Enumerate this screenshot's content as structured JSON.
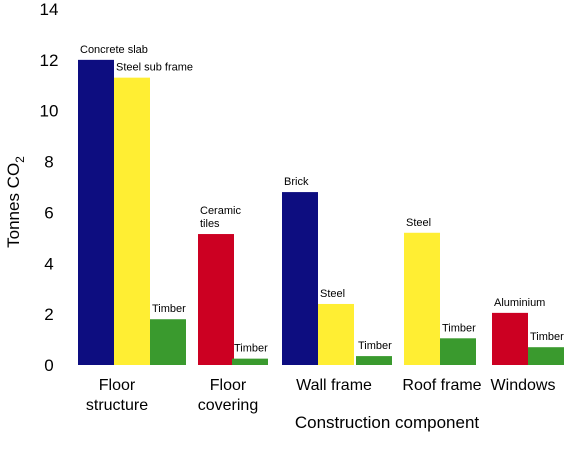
{
  "chart_data": {
    "type": "bar",
    "title": "",
    "xlabel": "Construction component",
    "ylabel_main": "Tonnes CO",
    "ylabel_sub": "2",
    "ylim": [
      0,
      14
    ],
    "y_ticks": [
      0,
      2,
      4,
      6,
      8,
      10,
      12,
      14
    ],
    "grid": false,
    "legend": "none",
    "colors": {
      "navy": "#0d0d80",
      "yellow": "#ffee33",
      "green": "#3a9a2e",
      "red": "#cc0022"
    },
    "categories": [
      {
        "label_lines": [
          "Floor",
          "structure"
        ]
      },
      {
        "label_lines": [
          "Floor",
          "covering"
        ]
      },
      {
        "label_lines": [
          "Wall frame"
        ]
      },
      {
        "label_lines": [
          "Roof frame"
        ]
      },
      {
        "label_lines": [
          "Windows"
        ]
      }
    ],
    "bars": [
      {
        "category": 0,
        "label_lines": [
          "Concrete slab"
        ],
        "value": 12.0,
        "color": "navy"
      },
      {
        "category": 0,
        "label_lines": [
          "Steel sub frame"
        ],
        "value": 11.3,
        "color": "yellow"
      },
      {
        "category": 0,
        "label_lines": [
          "Timber"
        ],
        "value": 1.8,
        "color": "green"
      },
      {
        "category": 1,
        "label_lines": [
          "Ceramic",
          "tiles"
        ],
        "value": 5.15,
        "color": "red"
      },
      {
        "category": 1,
        "label_lines": [
          "Timber"
        ],
        "value": 0.25,
        "color": "green"
      },
      {
        "category": 2,
        "label_lines": [
          "Brick"
        ],
        "value": 6.8,
        "color": "navy"
      },
      {
        "category": 2,
        "label_lines": [
          "Steel"
        ],
        "value": 2.4,
        "color": "yellow"
      },
      {
        "category": 2,
        "label_lines": [
          "Timber"
        ],
        "value": 0.35,
        "color": "green"
      },
      {
        "category": 3,
        "label_lines": [
          "Steel"
        ],
        "value": 5.2,
        "color": "yellow"
      },
      {
        "category": 3,
        "label_lines": [
          "Timber"
        ],
        "value": 1.05,
        "color": "green"
      },
      {
        "category": 4,
        "label_lines": [
          "Aluminium"
        ],
        "value": 2.05,
        "color": "red"
      },
      {
        "category": 4,
        "label_lines": [
          "Timber"
        ],
        "value": 0.7,
        "color": "green"
      }
    ]
  }
}
